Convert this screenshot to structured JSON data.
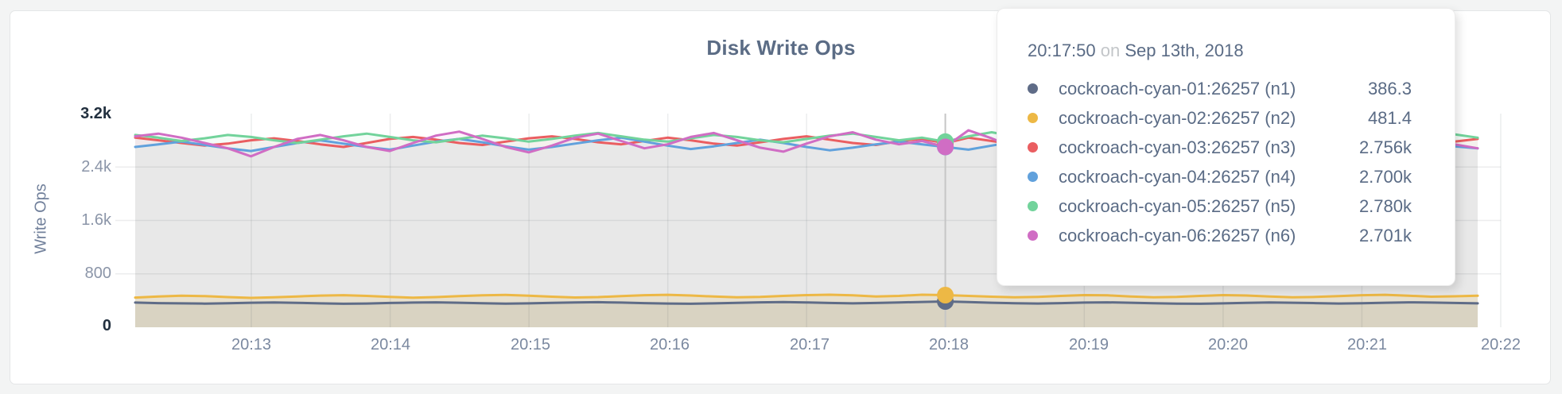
{
  "panel": {
    "title": "Disk Write Ops"
  },
  "y_axis": {
    "label": "Write Ops",
    "ticks": [
      "0",
      "800",
      "1.6k",
      "2.4k",
      "3.2k"
    ]
  },
  "x_axis": {
    "ticks": [
      "20:13",
      "20:14",
      "20:15",
      "20:16",
      "20:17",
      "20:18",
      "20:19",
      "20:20",
      "20:21",
      "20:22"
    ]
  },
  "tooltip": {
    "time": "20:17:50",
    "on_word": "on",
    "date": "Sep 13th, 2018",
    "rows": [
      {
        "label": "cockroach-cyan-01:26257 (n1)",
        "value": "386.3",
        "color": "#5f6c87"
      },
      {
        "label": "cockroach-cyan-02:26257 (n2)",
        "value": "481.4",
        "color": "#edb845"
      },
      {
        "label": "cockroach-cyan-03:26257 (n3)",
        "value": "2.756k",
        "color": "#ea5e61"
      },
      {
        "label": "cockroach-cyan-04:26257 (n4)",
        "value": "2.700k",
        "color": "#61a1dc"
      },
      {
        "label": "cockroach-cyan-05:26257 (n5)",
        "value": "2.780k",
        "color": "#72d39b"
      },
      {
        "label": "cockroach-cyan-06:26257 (n6)",
        "value": "2.701k",
        "color": "#d06dc4"
      }
    ]
  },
  "chart_data": {
    "type": "area",
    "title": "Disk Write Ops",
    "ylabel": "Write Ops",
    "ylim": [
      0,
      3200
    ],
    "y_ticks": [
      0,
      800,
      1600,
      2400,
      3200
    ],
    "x_tick_labels": [
      "20:13",
      "20:14",
      "20:15",
      "20:16",
      "20:17",
      "20:18",
      "20:19",
      "20:20",
      "20:21",
      "20:22"
    ],
    "x_start_time": "20:12:10",
    "x_step_seconds": 10,
    "grid": true,
    "legend_position": "tooltip",
    "hover_index": 35,
    "hover_time": "20:17:50",
    "hover_date": "Sep 13th, 2018",
    "series": [
      {
        "name": "cockroach-cyan-01:26257 (n1)",
        "color": "#5f6c87",
        "fill": "rgba(95,108,135,0.13)",
        "hover_value": 386.3,
        "values": [
          370,
          362,
          358,
          355,
          360,
          368,
          372,
          366,
          358,
          352,
          356,
          364,
          370,
          374,
          368,
          360,
          354,
          358,
          366,
          372,
          376,
          370,
          362,
          356,
          352,
          358,
          366,
          374,
          378,
          372,
          364,
          358,
          364,
          372,
          380,
          386.3,
          378,
          368,
          360,
          356,
          362,
          370,
          374,
          368,
          360,
          354,
          352,
          358,
          366,
          372,
          368,
          362,
          356,
          360,
          368,
          374,
          370,
          364,
          358
        ]
      },
      {
        "name": "cockroach-cyan-02:26257 (n2)",
        "color": "#edb845",
        "fill": "rgba(237,184,69,0.16)",
        "hover_value": 481.4,
        "values": [
          445,
          460,
          472,
          466,
          452,
          440,
          448,
          462,
          475,
          480,
          470,
          455,
          444,
          452,
          466,
          478,
          484,
          474,
          458,
          446,
          452,
          466,
          480,
          486,
          476,
          460,
          448,
          455,
          470,
          482,
          488,
          478,
          462,
          470,
          488,
          481.4,
          470,
          458,
          448,
          456,
          470,
          482,
          478,
          462,
          450,
          456,
          470,
          482,
          476,
          460,
          448,
          454,
          468,
          480,
          486,
          474,
          458,
          464,
          472
        ]
      },
      {
        "name": "cockroach-cyan-03:26257 (n3)",
        "color": "#ea5e61",
        "fill": "rgba(234,94,97,0.07)",
        "hover_value": 2756,
        "values": [
          2840,
          2800,
          2760,
          2720,
          2750,
          2800,
          2830,
          2790,
          2740,
          2700,
          2760,
          2820,
          2850,
          2810,
          2760,
          2730,
          2780,
          2830,
          2860,
          2820,
          2770,
          2740,
          2790,
          2840,
          2800,
          2750,
          2720,
          2770,
          2820,
          2860,
          2810,
          2760,
          2730,
          2790,
          2820,
          2756,
          2840,
          2790,
          2740,
          2790,
          2830,
          2800,
          2760,
          2800,
          2850,
          2820,
          2770,
          2740,
          2780,
          2830,
          2860,
          2810,
          2760,
          2790,
          2840,
          2800,
          2750,
          2780,
          2820
        ]
      },
      {
        "name": "cockroach-cyan-04:26257 (n4)",
        "color": "#61a1dc",
        "fill": "rgba(97,161,220,0.07)",
        "hover_value": 2700,
        "values": [
          2700,
          2740,
          2780,
          2730,
          2680,
          2640,
          2700,
          2760,
          2800,
          2750,
          2700,
          2660,
          2720,
          2780,
          2820,
          2770,
          2710,
          2660,
          2700,
          2750,
          2800,
          2840,
          2780,
          2720,
          2670,
          2710,
          2760,
          2810,
          2760,
          2700,
          2650,
          2690,
          2740,
          2780,
          2740,
          2700,
          2660,
          2720,
          2780,
          2760,
          2700,
          2660,
          2710,
          2770,
          2820,
          2770,
          2710,
          2670,
          2720,
          2780,
          2830,
          2780,
          2720,
          2680,
          2730,
          2790,
          2760,
          2710,
          2680
        ]
      },
      {
        "name": "cockroach-cyan-05:26257 (n5)",
        "color": "#72d39b",
        "fill": "rgba(114,211,155,0.07)",
        "hover_value": 2780,
        "values": [
          2880,
          2840,
          2790,
          2830,
          2880,
          2850,
          2800,
          2760,
          2810,
          2860,
          2900,
          2850,
          2800,
          2770,
          2820,
          2870,
          2830,
          2780,
          2820,
          2870,
          2910,
          2860,
          2810,
          2780,
          2830,
          2880,
          2850,
          2800,
          2770,
          2820,
          2870,
          2900,
          2850,
          2800,
          2840,
          2780,
          2860,
          2920,
          2860,
          2800,
          2770,
          2820,
          2870,
          2840,
          2790,
          2760,
          2810,
          2860,
          2900,
          2850,
          2800,
          2830,
          2880,
          2840,
          2790,
          2820,
          2860,
          2890,
          2840
        ]
      },
      {
        "name": "cockroach-cyan-06:26257 (n6)",
        "color": "#d06dc4",
        "fill": "rgba(208,109,196,0.07)",
        "hover_value": 2701,
        "values": [
          2860,
          2900,
          2840,
          2760,
          2680,
          2560,
          2700,
          2820,
          2880,
          2800,
          2700,
          2640,
          2760,
          2870,
          2930,
          2820,
          2700,
          2620,
          2720,
          2840,
          2900,
          2790,
          2680,
          2740,
          2850,
          2910,
          2800,
          2690,
          2630,
          2750,
          2860,
          2920,
          2810,
          2740,
          2790,
          2701,
          2950,
          2830,
          2690,
          2730,
          2850,
          2900,
          2780,
          2660,
          2720,
          2840,
          2890,
          2770,
          2650,
          2710,
          2830,
          2880,
          2760,
          2640,
          2700,
          2820,
          2860,
          2740,
          2680
        ]
      }
    ]
  }
}
